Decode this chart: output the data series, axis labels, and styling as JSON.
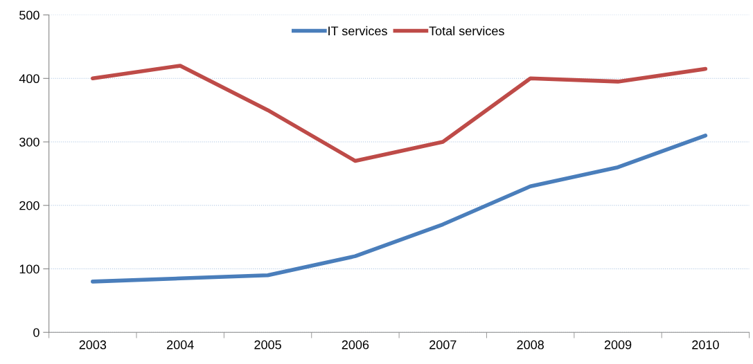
{
  "chart_data": {
    "type": "line",
    "categories": [
      "2003",
      "2004",
      "2005",
      "2006",
      "2007",
      "2008",
      "2009",
      "2010"
    ],
    "series": [
      {
        "name": "IT services",
        "color": "#4a7ebb",
        "values": [
          80,
          85,
          90,
          120,
          170,
          230,
          260,
          310
        ]
      },
      {
        "name": "Total services",
        "color": "#be4b48",
        "values": [
          400,
          420,
          350,
          270,
          300,
          400,
          395,
          415
        ]
      }
    ],
    "ylim": [
      0,
      500
    ],
    "yticks": [
      0,
      100,
      200,
      300,
      400,
      500
    ],
    "grid": "y",
    "legend": "top",
    "marker": "none",
    "line_style": "solid"
  }
}
